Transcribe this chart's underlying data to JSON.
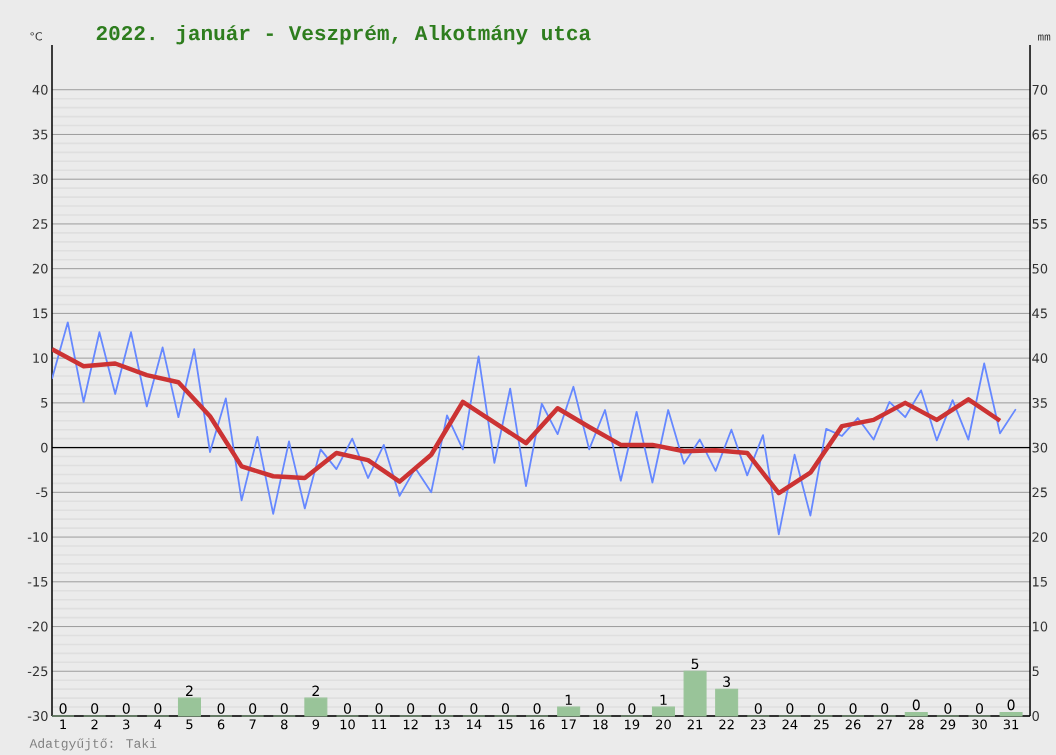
{
  "chart_data": {
    "type": "line",
    "title": "2022. január - Veszprém, Alkotmány utca",
    "ylabel": "°C",
    "y2label": "mm",
    "annotations": [
      "Adatgyűjtő: Taki"
    ],
    "xlim": [
      0.65,
      31.6
    ],
    "ylim": [
      -30,
      45
    ],
    "y2lim": [
      0,
      75
    ],
    "xticks": [
      1,
      2,
      3,
      4,
      5,
      6,
      7,
      8,
      9,
      10,
      11,
      12,
      13,
      14,
      15,
      16,
      17,
      18,
      19,
      20,
      21,
      22,
      23,
      24,
      25,
      26,
      27,
      28,
      29,
      30,
      31
    ],
    "yticks": [
      -30,
      -25,
      -20,
      -15,
      -10,
      -5,
      0,
      5,
      10,
      15,
      20,
      25,
      30,
      35,
      40
    ],
    "y2ticks": [
      0,
      5,
      10,
      15,
      20,
      25,
      30,
      35,
      40,
      45,
      50,
      55,
      60,
      65,
      70
    ],
    "grid": "y",
    "marker": "none",
    "ref_lines": [
      {
        "axis": "y",
        "value": 0,
        "color": "#000000"
      }
    ],
    "series": [
      {
        "color": "#6688ff",
        "x": [
          0.65,
          1.15,
          1.65,
          2.15,
          2.65,
          3.15,
          3.65,
          4.15,
          4.65,
          5.15,
          5.65,
          6.15,
          6.65,
          7.15,
          7.65,
          8.15,
          8.65,
          9.15,
          9.65,
          10.15,
          10.65,
          11.15,
          11.65,
          12.15,
          12.65,
          13.15,
          13.65,
          14.15,
          14.65,
          15.15,
          15.65,
          16.15,
          16.65,
          17.15,
          17.65,
          18.15,
          18.65,
          19.15,
          19.65,
          20.15,
          20.65,
          21.15,
          21.65,
          22.15,
          22.65,
          23.15,
          23.65,
          24.15,
          24.65,
          25.15,
          25.65,
          26.15,
          26.65,
          27.15,
          27.65,
          28.15,
          28.65,
          29.15,
          29.65,
          30.15,
          30.65,
          31.15
        ],
        "values": [
          7.7,
          14.0,
          5.1,
          12.9,
          6.0,
          12.9,
          4.6,
          11.2,
          3.4,
          11.0,
          -0.5,
          5.5,
          -5.9,
          1.2,
          -7.4,
          0.7,
          -6.8,
          -0.2,
          -2.4,
          1.0,
          -3.4,
          0.3,
          -5.4,
          -2.3,
          -5.0,
          3.6,
          -0.2,
          10.2,
          -1.7,
          6.6,
          -4.3,
          4.9,
          1.5,
          6.8,
          -0.2,
          4.2,
          -3.7,
          4.0,
          -3.9,
          4.2,
          -1.8,
          0.9,
          -2.6,
          2.0,
          -3.1,
          1.4,
          -9.7,
          -0.8,
          -7.6,
          2.1,
          1.3,
          3.3,
          0.9,
          5.1,
          3.4,
          6.4,
          0.8,
          5.3,
          0.9,
          9.4,
          1.6,
          4.3
        ]
      },
      {
        "color": "#cc3333",
        "x": [
          0.65,
          1.65,
          2.65,
          3.65,
          4.65,
          5.65,
          6.65,
          7.65,
          8.65,
          9.65,
          10.65,
          11.65,
          12.65,
          13.65,
          14.65,
          15.65,
          16.65,
          17.65,
          18.65,
          19.65,
          20.65,
          21.65,
          22.65,
          23.65,
          24.65,
          25.65,
          26.65,
          27.65,
          28.65,
          29.65,
          30.65
        ],
        "values": [
          11.0,
          9.1,
          9.4,
          8.1,
          7.3,
          3.5,
          -2.1,
          -3.2,
          -3.4,
          -0.6,
          -1.4,
          -3.8,
          -0.8,
          5.1,
          2.8,
          0.5,
          4.4,
          2.3,
          0.3,
          0.3,
          -0.4,
          -0.3,
          -0.6,
          -5.1,
          -2.8,
          2.4,
          3.1,
          5.0,
          3.1,
          5.4,
          3.0
        ]
      },
      {
        "type": "bar",
        "axis": "y2",
        "color": "#99c499",
        "x": [
          1,
          2,
          3,
          4,
          5,
          6,
          7,
          8,
          9,
          10,
          11,
          12,
          13,
          14,
          15,
          16,
          17,
          18,
          19,
          20,
          21,
          22,
          23,
          24,
          25,
          26,
          27,
          28,
          29,
          30,
          31
        ],
        "values": [
          0,
          0,
          0,
          0,
          2,
          0,
          0,
          0,
          2,
          0,
          0,
          0,
          0,
          0,
          0,
          0,
          1,
          0,
          0,
          1,
          5,
          3,
          0,
          0,
          0,
          0,
          0,
          0.4,
          0,
          0,
          0.4
        ],
        "value_labels": [
          "0",
          "0",
          "0",
          "0",
          "2",
          "0",
          "0",
          "0",
          "2",
          "0",
          "0",
          "0",
          "0",
          "0",
          "0",
          "0",
          "1",
          "0",
          "0",
          "1",
          "5",
          "3",
          "0",
          "0",
          "0",
          "0",
          "0",
          "0",
          "0",
          "0",
          "0"
        ]
      }
    ]
  }
}
